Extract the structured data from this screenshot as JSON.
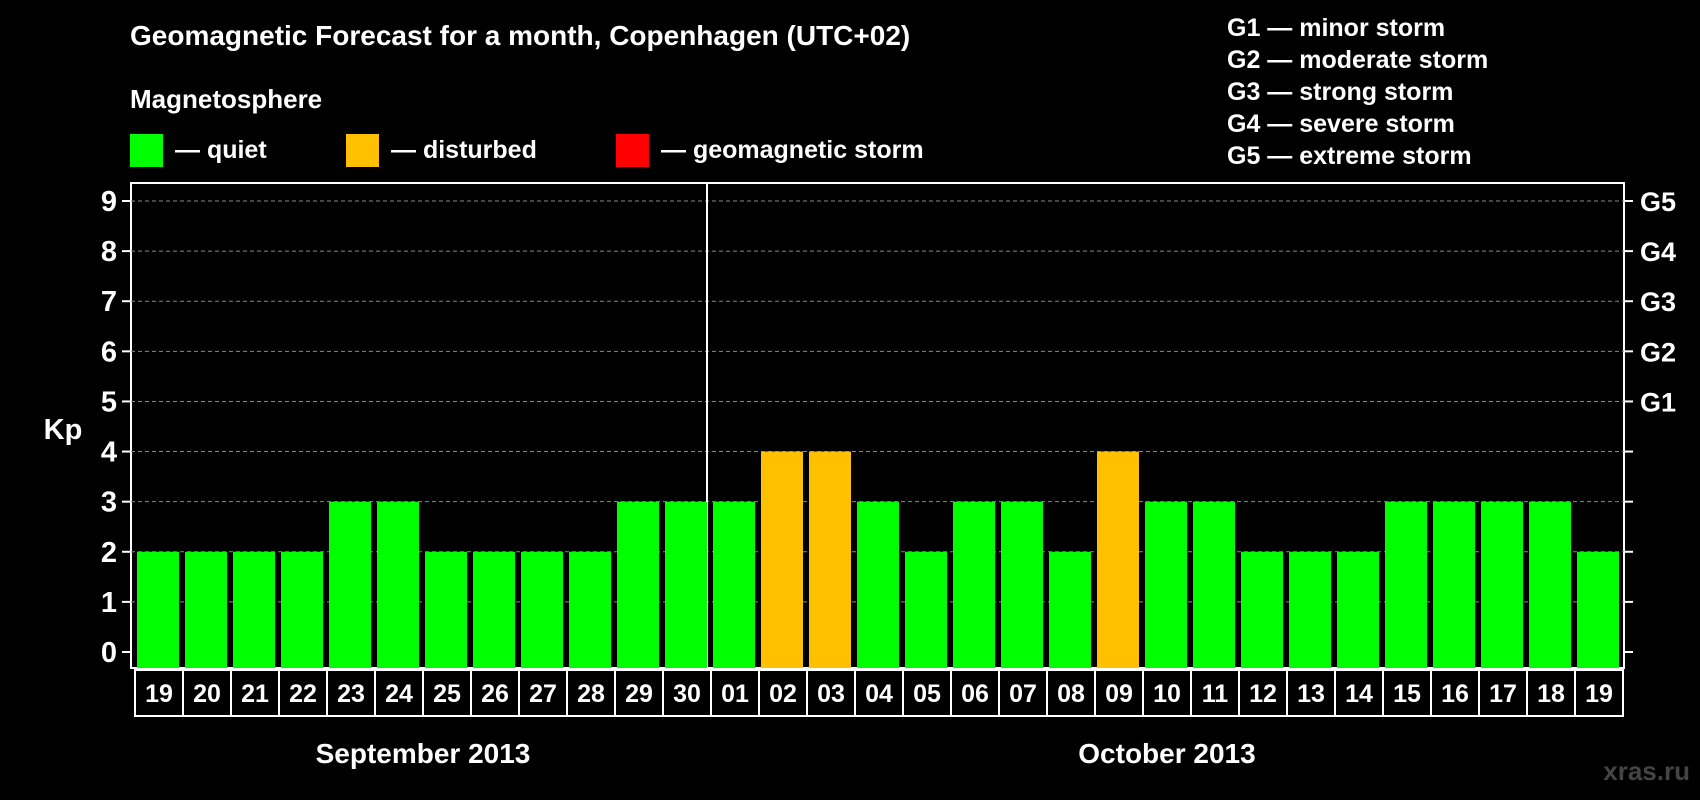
{
  "header": {
    "title": "Geomagnetic Forecast for a month, Copenhagen (UTC+02)",
    "subtitle": "Magnetosphere"
  },
  "legend": {
    "items": [
      {
        "label": "— quiet",
        "color": "#00ff00"
      },
      {
        "label": "— disturbed",
        "color": "#ffc000"
      },
      {
        "label": "— geomagnetic storm",
        "color": "#ff0000"
      }
    ]
  },
  "storm_legend": [
    "G1 — minor storm",
    "G2 — moderate storm",
    "G3 — strong storm",
    "G4 — severe storm",
    "G5 — extreme storm"
  ],
  "watermark": "xras.ru",
  "chart_data": {
    "type": "bar",
    "title": "Geomagnetic Forecast for a month, Copenhagen (UTC+02)",
    "ylabel": "Kp",
    "ylim": [
      0,
      9
    ],
    "yticks": [
      0,
      1,
      2,
      3,
      4,
      5,
      6,
      7,
      8,
      9
    ],
    "right_axis_labels": [
      {
        "kp": 5,
        "label": "G1"
      },
      {
        "kp": 6,
        "label": "G2"
      },
      {
        "kp": 7,
        "label": "G3"
      },
      {
        "kp": 8,
        "label": "G4"
      },
      {
        "kp": 9,
        "label": "G5"
      }
    ],
    "categories": [
      "19",
      "20",
      "21",
      "22",
      "23",
      "24",
      "25",
      "26",
      "27",
      "28",
      "29",
      "30",
      "01",
      "02",
      "03",
      "04",
      "05",
      "06",
      "07",
      "08",
      "09",
      "10",
      "11",
      "12",
      "13",
      "14",
      "15",
      "16",
      "17",
      "18",
      "19"
    ],
    "values": [
      2,
      2,
      2,
      2,
      3,
      3,
      2,
      2,
      2,
      2,
      3,
      3,
      3,
      4,
      4,
      3,
      2,
      3,
      3,
      2,
      4,
      3,
      3,
      2,
      2,
      2,
      3,
      3,
      3,
      3,
      2
    ],
    "status": [
      "quiet",
      "quiet",
      "quiet",
      "quiet",
      "quiet",
      "quiet",
      "quiet",
      "quiet",
      "quiet",
      "quiet",
      "quiet",
      "quiet",
      "quiet",
      "disturbed",
      "disturbed",
      "quiet",
      "quiet",
      "quiet",
      "quiet",
      "quiet",
      "disturbed",
      "quiet",
      "quiet",
      "quiet",
      "quiet",
      "quiet",
      "quiet",
      "quiet",
      "quiet",
      "quiet",
      "quiet"
    ],
    "status_colors": {
      "quiet": "#00ff00",
      "disturbed": "#ffc000",
      "storm": "#ff0000"
    },
    "months": [
      {
        "label": "September 2013",
        "count": 12
      },
      {
        "label": "October 2013",
        "count": 19
      }
    ],
    "grid": true
  }
}
